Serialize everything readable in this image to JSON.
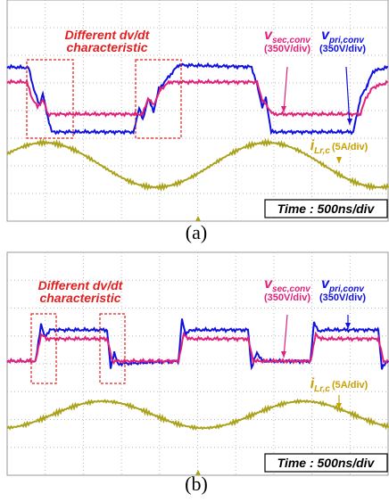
{
  "panels": [
    {
      "annotation": [
        "Different dv/dt",
        "characteristic"
      ],
      "v_sec": {
        "symbol": "v",
        "subscript": "sec,conv",
        "scale": "(350V/div)"
      },
      "v_pri": {
        "symbol": "v",
        "subscript": "pri,conv",
        "scale": "(350V/div)"
      },
      "i_lr": {
        "symbol": "i",
        "subscript": "Lr,c",
        "scale": "(5A/div)"
      },
      "time": "Time : 500ns/div",
      "caption": "(a)"
    },
    {
      "annotation": [
        "Different dv/dt",
        "characteristic"
      ],
      "v_sec": {
        "symbol": "v",
        "subscript": "sec,conv",
        "scale": "(350V/div)"
      },
      "v_pri": {
        "symbol": "v",
        "subscript": "pri,conv",
        "scale": "(350V/div)"
      },
      "i_lr": {
        "symbol": "i",
        "subscript": "Lr,c",
        "scale": "(5A/div)"
      },
      "time": "Time : 500ns/div",
      "caption": "(b)"
    }
  ]
}
